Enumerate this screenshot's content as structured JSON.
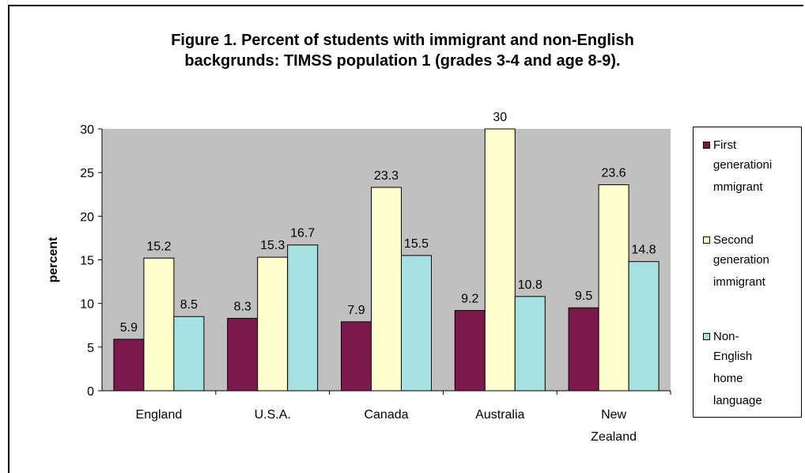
{
  "chart_data": {
    "type": "bar",
    "title": "Figure 1. Percent of students with immigrant and non-English backgrunds: TIMSS population 1 (grades 3-4 and age 8-9).",
    "title_lines": [
      "Figure 1. Percent of students with immigrant and non-English",
      "backgrunds: TIMSS population 1 (grades 3-4 and age 8-9)."
    ],
    "xlabel": "",
    "ylabel": "percent",
    "ylim": [
      0,
      30
    ],
    "yticks": [
      "0",
      "5",
      "10",
      "15",
      "20",
      "25",
      "30"
    ],
    "grid": false,
    "legend_position": "right",
    "categories": [
      [
        "England"
      ],
      [
        "U.S.A."
      ],
      [
        "Canada"
      ],
      [
        "Australia"
      ],
      [
        "New",
        "Zealand"
      ]
    ],
    "series": [
      {
        "name": "First generation immigrant",
        "legend_lines": [
          "First",
          "generationi",
          "mmigrant"
        ],
        "color": "#7b1a4a",
        "values": [
          5.9,
          8.3,
          7.9,
          9.2,
          9.5
        ],
        "labels": [
          "5.9",
          "8.3",
          "7.9",
          "9.2",
          "9.5"
        ]
      },
      {
        "name": "Second generation immigrant",
        "legend_lines": [
          "Second",
          "generation",
          "immigrant"
        ],
        "color": "#ffffcc",
        "values": [
          15.2,
          15.3,
          23.3,
          30,
          23.6
        ],
        "labels": [
          "15.2",
          "15.3",
          "23.3",
          "30",
          "23.6"
        ]
      },
      {
        "name": "Non-English home language",
        "legend_lines": [
          "Non-",
          "English",
          "home",
          "language"
        ],
        "color": "#a6e2e2",
        "values": [
          8.5,
          16.7,
          15.5,
          10.8,
          14.8
        ],
        "labels": [
          "8.5",
          "16.7",
          "15.5",
          "10.8",
          "14.8"
        ]
      }
    ],
    "plot_background": "#c0c0c0"
  }
}
